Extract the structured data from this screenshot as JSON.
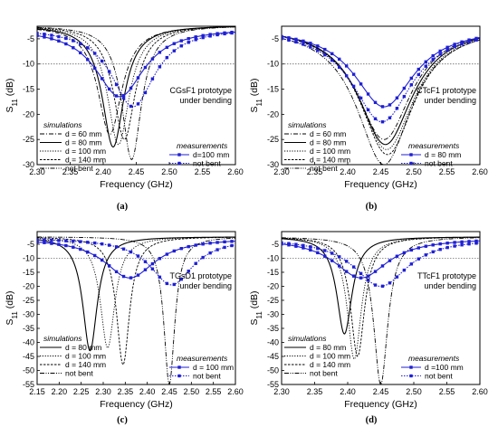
{
  "colors": {
    "simulation": "#000000",
    "measurement": "#1f1fd6",
    "reference": "#555555"
  },
  "simulation_legend_title": "simulations",
  "measurement_legend_title": "measurements",
  "x_axis_label": "Frequency (GHz)",
  "y_axis_label_main": "S",
  "y_axis_label_sub": "11",
  "y_axis_label_unit": " (dB)",
  "chart_data": [
    {
      "type": "line",
      "panel_label": "(a)",
      "annotation": [
        "CGsF1 prototype",
        "under bending"
      ],
      "xlabel": "Frequency (GHz)",
      "ylabel": "S11 (dB)",
      "xlim": [
        2.3,
        2.6
      ],
      "ylim": [
        -30,
        -2.5
      ],
      "xticks": [
        "2.30",
        "2.35",
        "2.40",
        "2.45",
        "2.50",
        "2.55",
        "2.60"
      ],
      "yticks": [
        "-5",
        "-10",
        "-15",
        "-20",
        "-25",
        "-30"
      ],
      "reference_line": -10,
      "simulations": [
        {
          "name": "d = 60 mm",
          "dash": "dashdot",
          "f0": 2.41,
          "depth": -24,
          "s": 0.022
        },
        {
          "name": "d = 80 mm",
          "dash": "solid",
          "f0": 2.415,
          "depth": -26.5,
          "s": 0.02
        },
        {
          "name": "d = 100 mm",
          "dash": "dot",
          "f0": 2.423,
          "depth": -26,
          "s": 0.02
        },
        {
          "name": "d = 140 mm",
          "dash": "dot2",
          "f0": 2.432,
          "depth": -25,
          "s": 0.02
        },
        {
          "name": "not bent",
          "dash": "dashdotdot",
          "f0": 2.443,
          "depth": -29,
          "s": 0.018
        }
      ],
      "measurements": [
        {
          "name": "d=100 mm",
          "marker": "solid",
          "f0": 2.425,
          "depth": -16.5,
          "s": 0.045
        },
        {
          "name": "not bent",
          "marker": "dotted",
          "f0": 2.445,
          "depth": -18.5,
          "s": 0.04
        }
      ]
    },
    {
      "type": "line",
      "panel_label": "(b)",
      "annotation": [
        "CTcF1 prototype",
        "under bending"
      ],
      "xlabel": "Frequency (GHz)",
      "ylabel": "S11 (dB)",
      "xlim": [
        2.3,
        2.6
      ],
      "ylim": [
        -30,
        -2.5
      ],
      "xticks": [
        "2.30",
        "2.35",
        "2.40",
        "2.45",
        "2.50",
        "2.55",
        "2.60"
      ],
      "yticks": [
        "-5",
        "-10",
        "-15",
        "-20",
        "-25",
        "-30"
      ],
      "reference_line": -10,
      "simulations": [
        {
          "name": "d = 60 mm",
          "dash": "dashdot",
          "f0": 2.455,
          "depth": -25,
          "s": 0.05
        },
        {
          "name": "d = 80 mm",
          "dash": "solid",
          "f0": 2.457,
          "depth": -26,
          "s": 0.05
        },
        {
          "name": "d = 100 mm",
          "dash": "dot",
          "f0": 2.459,
          "depth": -27,
          "s": 0.05
        },
        {
          "name": "d = 140 mm",
          "dash": "dot2",
          "f0": 2.46,
          "depth": -28,
          "s": 0.05
        },
        {
          "name": "not bent",
          "dash": "dashdotdot",
          "f0": 2.455,
          "depth": -30,
          "s": 0.05
        }
      ],
      "measurements": [
        {
          "name": "d = 80 mm",
          "marker": "solid",
          "f0": 2.455,
          "depth": -18.5,
          "s": 0.055
        },
        {
          "name": "not bent",
          "marker": "dotted",
          "f0": 2.452,
          "depth": -21.5,
          "s": 0.055
        }
      ]
    },
    {
      "type": "line",
      "panel_label": "(c)",
      "annotation": [
        "TGsD1 prototype",
        "under bending"
      ],
      "xlabel": "Frequency (GHz)",
      "ylabel": "S11 (dB)",
      "xlim": [
        2.15,
        2.6
      ],
      "ylim": [
        -55,
        -0.5
      ],
      "xticks": [
        "2.15",
        "2.20",
        "2.25",
        "2.30",
        "2.35",
        "2.40",
        "2.45",
        "2.50",
        "2.55",
        "2.60"
      ],
      "yticks": [
        "-5",
        "-10",
        "-15",
        "-20",
        "-25",
        "-30",
        "-35",
        "-40",
        "-45",
        "-50",
        "-55"
      ],
      "reference_line": -10,
      "simulations": [
        {
          "name": "d = 80 mm",
          "dash": "solid",
          "f0": 2.27,
          "depth": -43,
          "s": 0.02
        },
        {
          "name": "d = 100 mm",
          "dash": "dot",
          "f0": 2.31,
          "depth": -42,
          "s": 0.02
        },
        {
          "name": "d = 140 mm",
          "dash": "dot2",
          "f0": 2.345,
          "depth": -48,
          "s": 0.018
        },
        {
          "name": "not bent",
          "dash": "dashdotdot",
          "f0": 2.45,
          "depth": -55,
          "s": 0.015
        }
      ],
      "measurements": [
        {
          "name": "d = 100 mm",
          "marker": "solid",
          "f0": 2.36,
          "depth": -17,
          "s": 0.07
        },
        {
          "name": "not bent",
          "marker": "dotted",
          "f0": 2.455,
          "depth": -19.5,
          "s": 0.06
        }
      ]
    },
    {
      "type": "line",
      "panel_label": "(d)",
      "annotation": [
        "TTcF1 prototype",
        "under bending"
      ],
      "xlabel": "Frequency (GHz)",
      "ylabel": "S11 (dB)",
      "xlim": [
        2.3,
        2.6
      ],
      "ylim": [
        -55,
        -0.5
      ],
      "xticks": [
        "2.30",
        "2.35",
        "2.40",
        "2.45",
        "2.50",
        "2.55",
        "2.60"
      ],
      "yticks": [
        "-5",
        "-10",
        "-15",
        "-20",
        "-25",
        "-30",
        "-35",
        "-40",
        "-45",
        "-50",
        "-55"
      ],
      "reference_line": -10,
      "simulations": [
        {
          "name": "d = 80 mm",
          "dash": "solid",
          "f0": 2.395,
          "depth": -37,
          "s": 0.014
        },
        {
          "name": "d = 100 mm",
          "dash": "dot",
          "f0": 2.41,
          "depth": -46,
          "s": 0.013
        },
        {
          "name": "d = 140 mm",
          "dash": "dot2",
          "f0": 2.415,
          "depth": -45,
          "s": 0.013
        },
        {
          "name": "not bent",
          "dash": "dashdotdot",
          "f0": 2.45,
          "depth": -55,
          "s": 0.013
        }
      ],
      "measurements": [
        {
          "name": "d =100 mm",
          "marker": "solid",
          "f0": 2.42,
          "depth": -17,
          "s": 0.05
        },
        {
          "name": "not bent",
          "marker": "dotted",
          "f0": 2.45,
          "depth": -20,
          "s": 0.05
        }
      ]
    }
  ]
}
